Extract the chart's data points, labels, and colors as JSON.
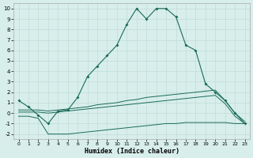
{
  "xlabel": "Humidex (Indice chaleur)",
  "background_color": "#d8eeeb",
  "grid_color": "#c0dcd8",
  "line_color": "#1a6b5a",
  "xlim": [
    -0.5,
    23.5
  ],
  "ylim": [
    -2.5,
    10.5
  ],
  "xticks": [
    0,
    1,
    2,
    3,
    4,
    5,
    6,
    7,
    8,
    9,
    10,
    11,
    12,
    13,
    14,
    15,
    16,
    17,
    18,
    19,
    20,
    21,
    22,
    23
  ],
  "yticks": [
    -2,
    -1,
    0,
    1,
    2,
    3,
    4,
    5,
    6,
    7,
    8,
    9,
    10
  ],
  "main_line": {
    "x": [
      0,
      1,
      2,
      3,
      4,
      5,
      6,
      7,
      8,
      9,
      10,
      11,
      12,
      13,
      14,
      15,
      16,
      17,
      18,
      19,
      20,
      21,
      22,
      23
    ],
    "y": [
      1.2,
      0.6,
      -0.2,
      -1.0,
      0.2,
      0.3,
      1.5,
      3.5,
      4.5,
      5.5,
      6.5,
      8.5,
      10.0,
      9.0,
      10.0,
      10.0,
      9.2,
      6.5,
      6.0,
      2.8,
      2.0,
      1.2,
      0.0,
      -1.0
    ]
  },
  "upper_line": {
    "x": [
      0,
      1,
      2,
      3,
      4,
      5,
      6,
      7,
      8,
      9,
      10,
      11,
      12,
      13,
      14,
      15,
      16,
      17,
      18,
      19,
      20,
      21,
      22,
      23
    ],
    "y": [
      0.3,
      0.3,
      0.3,
      0.2,
      0.3,
      0.4,
      0.5,
      0.6,
      0.8,
      0.9,
      1.0,
      1.2,
      1.3,
      1.5,
      1.6,
      1.7,
      1.8,
      1.9,
      2.0,
      2.1,
      2.2,
      1.2,
      0.0,
      -0.8
    ]
  },
  "middle_line": {
    "x": [
      0,
      1,
      2,
      3,
      4,
      5,
      6,
      7,
      8,
      9,
      10,
      11,
      12,
      13,
      14,
      15,
      16,
      17,
      18,
      19,
      20,
      21,
      22,
      23
    ],
    "y": [
      0.1,
      0.1,
      0.1,
      0.0,
      0.1,
      0.2,
      0.3,
      0.4,
      0.5,
      0.6,
      0.7,
      0.8,
      0.9,
      1.0,
      1.1,
      1.2,
      1.3,
      1.4,
      1.5,
      1.6,
      1.7,
      0.9,
      -0.3,
      -1.0
    ]
  },
  "lower_line": {
    "x": [
      0,
      1,
      2,
      3,
      4,
      5,
      6,
      7,
      8,
      9,
      10,
      11,
      12,
      13,
      14,
      15,
      16,
      17,
      18,
      19,
      20,
      21,
      22,
      23
    ],
    "y": [
      -0.3,
      -0.3,
      -0.5,
      -2.0,
      -2.0,
      -2.0,
      -1.9,
      -1.8,
      -1.7,
      -1.6,
      -1.5,
      -1.4,
      -1.3,
      -1.2,
      -1.1,
      -1.0,
      -1.0,
      -0.9,
      -0.9,
      -0.9,
      -0.9,
      -0.9,
      -1.0,
      -1.0
    ]
  }
}
